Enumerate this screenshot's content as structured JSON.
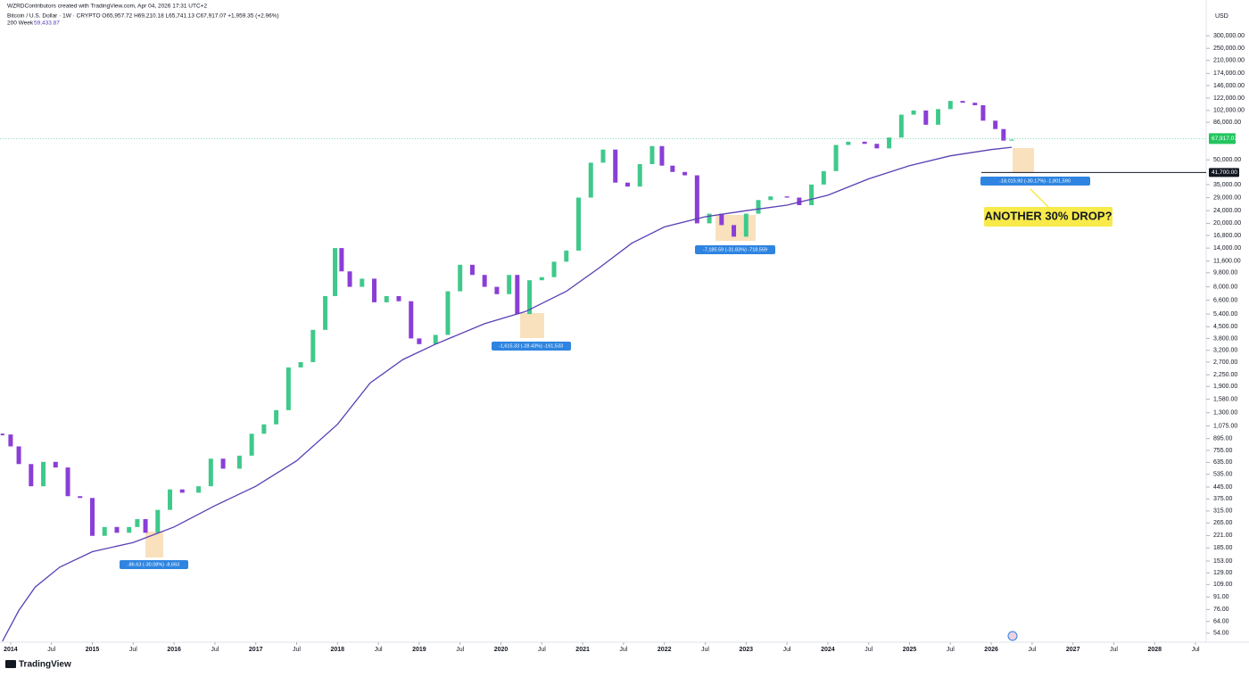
{
  "chart_data": {
    "type": "candlestick",
    "credit": "WZRDContributors created with TradingView.com, Apr 04, 2026 17:31 UTC+2",
    "legend": "Bitcoin / U.S. Dollar · 1W · CRYPTO  O65,957.72 H69,210.18 L65,741.13 C67,917.07 +1,959.35 (+2.96%)",
    "currency": "USD",
    "logo": "TradingView",
    "log_scale": true,
    "grid": false,
    "up_color": "#3fc98b",
    "down_color": "#8a3ed6",
    "x": [
      2013.9,
      2014.0,
      2014.1,
      2014.25,
      2014.4,
      2014.55,
      2014.7,
      2014.85,
      2015.0,
      2015.15,
      2015.3,
      2015.45,
      2015.55,
      2015.65,
      2015.8,
      2015.95,
      2016.1,
      2016.3,
      2016.45,
      2016.6,
      2016.8,
      2016.95,
      2017.1,
      2017.25,
      2017.4,
      2017.55,
      2017.7,
      2017.85,
      2017.97,
      2018.05,
      2018.15,
      2018.3,
      2018.45,
      2018.6,
      2018.75,
      2018.9,
      2019.0,
      2019.2,
      2019.35,
      2019.5,
      2019.65,
      2019.8,
      2019.95,
      2020.1,
      2020.2,
      2020.35,
      2020.5,
      2020.65,
      2020.8,
      2020.95,
      2021.1,
      2021.25,
      2021.4,
      2021.55,
      2021.7,
      2021.85,
      2021.97,
      2022.1,
      2022.25,
      2022.4,
      2022.55,
      2022.7,
      2022.85,
      2023.0,
      2023.15,
      2023.3,
      2023.5,
      2023.65,
      2023.8,
      2023.95,
      2024.1,
      2024.25,
      2024.45,
      2024.6,
      2024.75,
      2024.9,
      2025.05,
      2025.2,
      2025.35,
      2025.5,
      2025.65,
      2025.8,
      2025.9,
      2026.05,
      2026.15,
      2026.25
    ],
    "values": [
      950,
      800,
      620,
      450,
      640,
      590,
      390,
      380,
      220,
      250,
      230,
      250,
      280,
      230,
      320,
      430,
      410,
      450,
      670,
      580,
      700,
      960,
      1100,
      1350,
      2500,
      2700,
      4300,
      7000,
      14000,
      10000,
      8000,
      9000,
      6400,
      7000,
      6500,
      3800,
      3500,
      4000,
      7500,
      11000,
      9500,
      8000,
      7200,
      9500,
      5400,
      8800,
      9200,
      11500,
      13500,
      29000,
      48000,
      58000,
      36000,
      34000,
      47000,
      61000,
      46000,
      42000,
      40000,
      20000,
      23000,
      19500,
      16500,
      23000,
      28000,
      29500,
      29000,
      26000,
      35000,
      42500,
      62000,
      65000,
      63000,
      59000,
      69000,
      96000,
      102000,
      83000,
      104000,
      117000,
      114000,
      110000,
      88000,
      78000,
      66000,
      67000
    ],
    "series": [
      {
        "name": "200 Week",
        "name_value": "59,433.87",
        "color": "#5a3fb5",
        "x": [
          2013.9,
          2014.1,
          2014.3,
          2014.6,
          2015.0,
          2015.5,
          2016.0,
          2016.5,
          2017.0,
          2017.5,
          2018.0,
          2018.4,
          2018.8,
          2019.2,
          2019.8,
          2020.3,
          2020.8,
          2021.2,
          2021.6,
          2022.0,
          2022.5,
          2023.0,
          2023.5,
          2024.0,
          2024.5,
          2025.0,
          2025.5,
          2026.0,
          2026.25
        ],
        "values": [
          48,
          75,
          105,
          140,
          175,
          200,
          250,
          340,
          450,
          650,
          1100,
          2000,
          2800,
          3500,
          4700,
          5600,
          7500,
          10500,
          15000,
          19000,
          22000,
          24000,
          26000,
          30000,
          38000,
          46000,
          53000,
          58000,
          60000
        ]
      }
    ],
    "last_price": {
      "value": 67917.07,
      "label": "67,917.07"
    },
    "target_line": {
      "value": 41700,
      "label": "41,700.00"
    },
    "measurements": [
      "-86.63 (-30.08%) -8,663",
      "-1,615.33 (-28.43%) -161,533",
      "-7,185.59 (-31.83%) -718,559",
      "-18,015.90 (-30.17%) -1,801,590"
    ],
    "annotation": "ANOTHER 30% DROP?",
    "xlim": [
      2013.87,
      2028.63
    ],
    "xticks": [
      2014,
      {
        "value": 2014.5,
        "label": "Jul"
      },
      2015,
      {
        "value": 2015.5,
        "label": "Jul"
      },
      2016,
      {
        "value": 2016.5,
        "label": "Jul"
      },
      2017,
      {
        "value": 2017.5,
        "label": "Jul"
      },
      2018,
      {
        "value": 2018.5,
        "label": "Jul"
      },
      2019,
      {
        "value": 2019.5,
        "label": "Jul"
      },
      2020,
      {
        "value": 2020.5,
        "label": "Jul"
      },
      2021,
      {
        "value": 2021.5,
        "label": "Jul"
      },
      2022,
      {
        "value": 2022.5,
        "label": "Jul"
      },
      2023,
      {
        "value": 2023.5,
        "label": "Jul"
      },
      2024,
      {
        "value": 2024.5,
        "label": "Jul"
      },
      2025,
      {
        "value": 2025.5,
        "label": "Jul"
      },
      2026,
      {
        "value": 2026.5,
        "label": "Jul"
      },
      2027,
      {
        "value": 2027.5,
        "label": "Jul"
      },
      2028,
      {
        "value": 2028.5,
        "label": "Jul"
      }
    ],
    "ylim": [
      47.4,
      414000
    ],
    "yticks": [
      {
        "value": 300000,
        "label": "300,000.00"
      },
      {
        "value": 250000,
        "label": "250,000.00"
      },
      {
        "value": 210000,
        "label": "210,000.00"
      },
      {
        "value": 174000,
        "label": "174,000.00"
      },
      {
        "value": 146000,
        "label": "146,000.00"
      },
      {
        "value": 122000,
        "label": "122,000.00"
      },
      {
        "value": 102000,
        "label": "102,000.00"
      },
      {
        "value": 86000,
        "label": "86,000.00"
      },
      {
        "value": 50000,
        "label": "50,000.00"
      },
      {
        "value": 35000,
        "label": "35,000.00"
      },
      {
        "value": 29000,
        "label": "29,000.00"
      },
      {
        "value": 24000,
        "label": "24,000.00"
      },
      {
        "value": 20000,
        "label": "20,000.00"
      },
      {
        "value": 16800,
        "label": "16,800.00"
      },
      {
        "value": 14000,
        "label": "14,000.00"
      },
      {
        "value": 11600,
        "label": "11,600.00"
      },
      {
        "value": 9800,
        "label": "9,800.00"
      },
      {
        "value": 8000,
        "label": "8,000.00"
      },
      {
        "value": 6600,
        "label": "6,600.00"
      },
      {
        "value": 5400,
        "label": "5,400.00"
      },
      {
        "value": 4500,
        "label": "4,500.00"
      },
      {
        "value": 3800,
        "label": "3,800.00"
      },
      {
        "value": 3200,
        "label": "3,200.00"
      },
      {
        "value": 2700,
        "label": "2,700.00"
      },
      {
        "value": 2250,
        "label": "2,250.00"
      },
      {
        "value": 1900,
        "label": "1,900.00"
      },
      {
        "value": 1580,
        "label": "1,580.00"
      },
      {
        "value": 1300,
        "label": "1,300.00"
      },
      {
        "value": 1075,
        "label": "1,075.00"
      },
      {
        "value": 895,
        "label": "895.00"
      },
      {
        "value": 755,
        "label": "755.00"
      },
      {
        "value": 635,
        "label": "635.00"
      },
      {
        "value": 535,
        "label": "535.00"
      },
      {
        "value": 445,
        "label": "445.00"
      },
      {
        "value": 375,
        "label": "375.00"
      },
      {
        "value": 315,
        "label": "315.00"
      },
      {
        "value": 265,
        "label": "265.00"
      },
      {
        "value": 221,
        "label": "221.00"
      },
      {
        "value": 185,
        "label": "185.00"
      },
      {
        "value": 153,
        "label": "153.00"
      },
      {
        "value": 129,
        "label": "129.00"
      },
      {
        "value": 109,
        "label": "109.00"
      },
      {
        "value": 91,
        "label": "91.00"
      },
      {
        "value": 76,
        "label": "76.00"
      },
      {
        "value": 64,
        "label": "64.00"
      },
      {
        "value": 54,
        "label": "54.00"
      }
    ]
  }
}
